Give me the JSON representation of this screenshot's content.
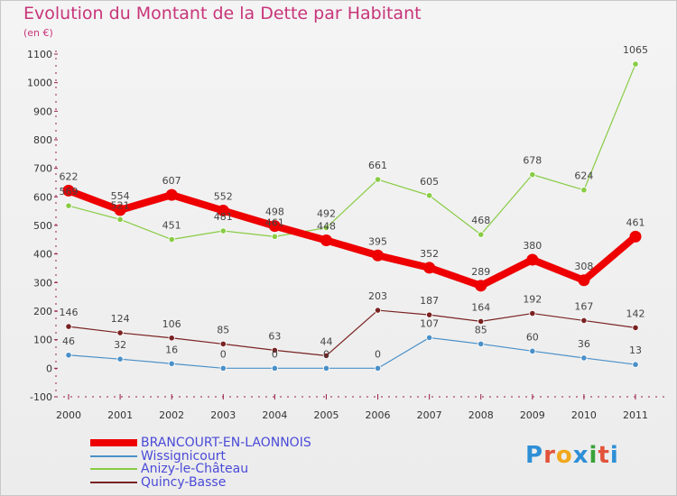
{
  "title": "Evolution du Montant de la Dette par Habitant",
  "unit_label": "(en €)",
  "logo": {
    "text": "Proxiti",
    "letter_colors": [
      "#2e8fd6",
      "#e2533a",
      "#f0a81c",
      "#2e8fd6",
      "#3aa23a",
      "#e2533a",
      "#2e8fd6"
    ]
  },
  "chart_data": {
    "type": "line",
    "x": [
      "2000",
      "2001",
      "2002",
      "2003",
      "2004",
      "2005",
      "2006",
      "2007",
      "2008",
      "2009",
      "2010",
      "2011"
    ],
    "ylim": [
      -100,
      1100
    ],
    "yticks": [
      -100,
      0,
      100,
      200,
      300,
      400,
      500,
      600,
      700,
      800,
      900,
      1000,
      1100
    ],
    "grid": false,
    "legend_position": "bottom",
    "series": [
      {
        "name": "BRANCOURT-EN-LAONNOIS",
        "color": "#ee0000",
        "values": [
          622,
          554,
          607,
          552,
          498,
          448,
          395,
          352,
          289,
          380,
          308,
          461
        ]
      },
      {
        "name": "Wissignicourt",
        "color": "#4a90c8",
        "values": [
          46,
          32,
          16,
          0,
          0,
          0,
          0,
          107,
          85,
          60,
          36,
          13
        ]
      },
      {
        "name": "Anizy-le-Château",
        "color": "#88cc44",
        "values": [
          569,
          521,
          451,
          481,
          461,
          492,
          661,
          605,
          468,
          678,
          624,
          1065
        ]
      },
      {
        "name": "Quincy-Basse",
        "color": "#7a2222",
        "values": [
          146,
          124,
          106,
          85,
          63,
          44,
          203,
          187,
          164,
          192,
          167,
          142
        ]
      }
    ],
    "data_labels": [
      [
        "622",
        "554",
        "607",
        "552",
        "498",
        "448",
        "395",
        "352",
        "289",
        "380",
        "308",
        "461"
      ],
      [
        "46",
        "32",
        "16",
        "0",
        "0",
        "0",
        "0",
        "107",
        "85",
        "60",
        "36",
        "13"
      ],
      [
        "569",
        "521",
        "451",
        "481",
        "461",
        "492",
        "661",
        "605",
        "468",
        "678",
        "624",
        "1065"
      ],
      [
        "146",
        "124",
        "106",
        "85",
        "63",
        "44",
        "203",
        "187",
        "164",
        "192",
        "167",
        "142"
      ]
    ]
  }
}
